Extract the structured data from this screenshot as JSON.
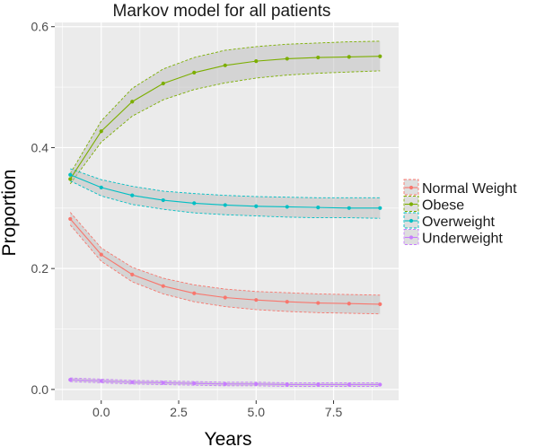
{
  "chart_data": {
    "type": "line",
    "title": "Markov model for all patients",
    "xlabel": "Years",
    "ylabel": "Proportion",
    "xlim": [
      -1.5,
      9.6
    ],
    "ylim": [
      -0.018,
      0.607
    ],
    "x_ticks": [
      0.0,
      2.5,
      5.0,
      7.5
    ],
    "x_tick_labels": [
      "0.0",
      "2.5",
      "5.0",
      "7.5"
    ],
    "y_ticks": [
      0.0,
      0.2,
      0.4,
      0.6
    ],
    "y_tick_labels": [
      "0.0",
      "0.2",
      "0.4",
      "0.6"
    ],
    "grid": true,
    "legend_position": "right",
    "x": [
      -1,
      0,
      1,
      2,
      3,
      4,
      5,
      6,
      7,
      8,
      9
    ],
    "series": [
      {
        "name": "Normal Weight",
        "color": "#F8766D",
        "values": [
          0.282,
          0.223,
          0.19,
          0.171,
          0.159,
          0.152,
          0.148,
          0.145,
          0.143,
          0.142,
          0.141
        ],
        "lower": [
          0.272,
          0.212,
          0.178,
          0.158,
          0.145,
          0.137,
          0.132,
          0.129,
          0.127,
          0.126,
          0.125
        ],
        "upper": [
          0.293,
          0.234,
          0.202,
          0.184,
          0.173,
          0.166,
          0.162,
          0.16,
          0.158,
          0.157,
          0.156
        ]
      },
      {
        "name": "Obese",
        "color": "#7CAE00",
        "values": [
          0.348,
          0.427,
          0.476,
          0.506,
          0.524,
          0.536,
          0.543,
          0.547,
          0.549,
          0.55,
          0.551
        ],
        "lower": [
          0.34,
          0.409,
          0.452,
          0.479,
          0.496,
          0.507,
          0.515,
          0.52,
          0.523,
          0.525,
          0.527
        ],
        "upper": [
          0.357,
          0.444,
          0.498,
          0.53,
          0.549,
          0.561,
          0.567,
          0.571,
          0.573,
          0.575,
          0.576
        ]
      },
      {
        "name": "Overweight",
        "color": "#00BFC4",
        "values": [
          0.355,
          0.334,
          0.321,
          0.313,
          0.308,
          0.305,
          0.303,
          0.302,
          0.301,
          0.3,
          0.3
        ],
        "lower": [
          0.345,
          0.32,
          0.306,
          0.298,
          0.292,
          0.289,
          0.287,
          0.285,
          0.284,
          0.284,
          0.283
        ],
        "upper": [
          0.365,
          0.347,
          0.336,
          0.328,
          0.324,
          0.321,
          0.319,
          0.318,
          0.317,
          0.317,
          0.317
        ]
      },
      {
        "name": "Underweight",
        "color": "#C77CFF",
        "values": [
          0.016,
          0.014,
          0.012,
          0.011,
          0.01,
          0.009,
          0.009,
          0.008,
          0.008,
          0.008,
          0.008
        ],
        "lower": [
          0.013,
          0.011,
          0.009,
          0.008,
          0.007,
          0.006,
          0.006,
          0.005,
          0.005,
          0.005,
          0.005
        ],
        "upper": [
          0.019,
          0.017,
          0.015,
          0.014,
          0.013,
          0.012,
          0.012,
          0.011,
          0.011,
          0.011,
          0.011
        ]
      }
    ],
    "colors": {
      "panel_background": "#EBEBEB",
      "grid_major": "#FFFFFF",
      "ribbon_fill": "#BEBEBE"
    }
  }
}
